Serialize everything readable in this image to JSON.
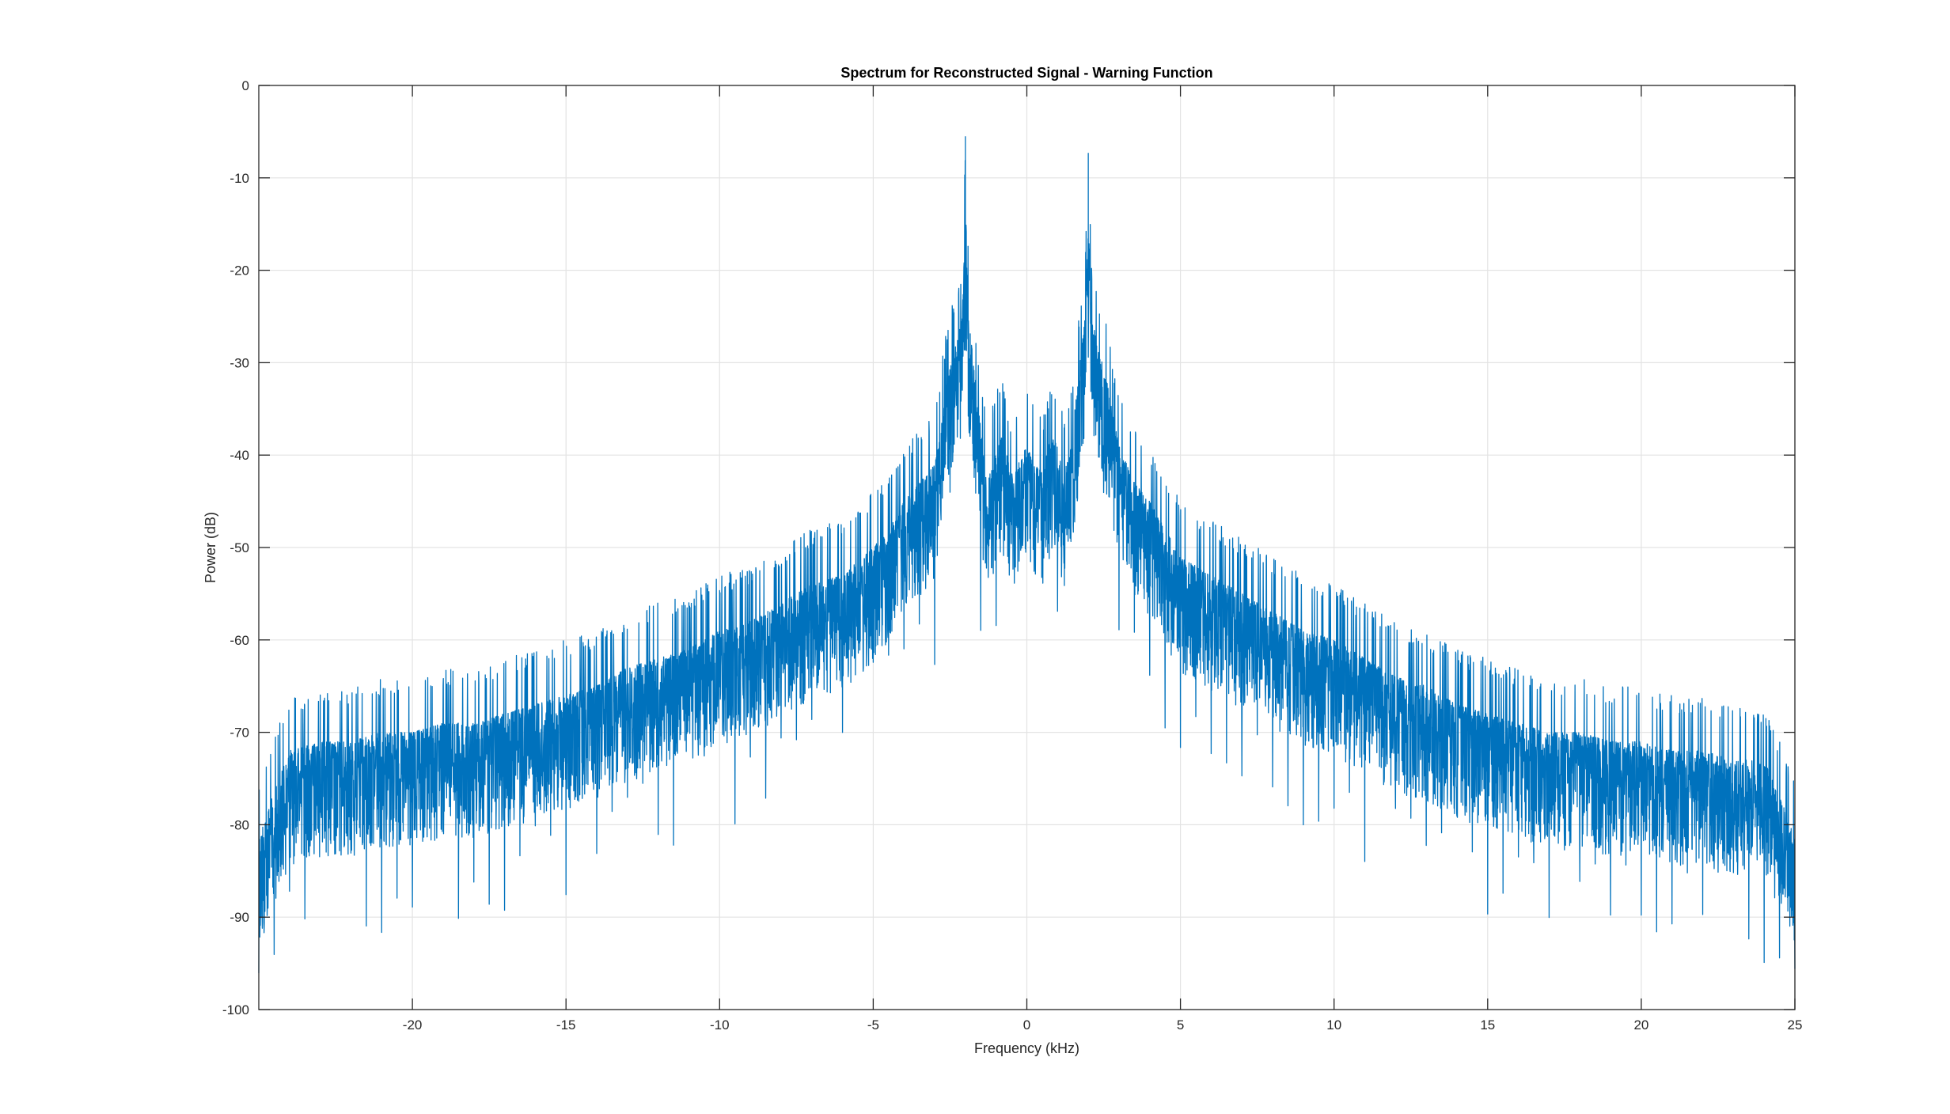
{
  "chart_data": {
    "type": "line",
    "title": "Spectrum for Reconstructed Signal - Warning Function",
    "xlabel": "Frequency (kHz)",
    "ylabel": "Power (dB)",
    "xlim": [
      -25,
      25
    ],
    "ylim": [
      -100,
      0
    ],
    "xticks": [
      -20,
      -15,
      -10,
      -5,
      0,
      5,
      10,
      15,
      20,
      25
    ],
    "yticks": [
      0,
      -10,
      -20,
      -30,
      -40,
      -50,
      -60,
      -70,
      -80,
      -90,
      -100
    ],
    "grid": true,
    "legend": "none",
    "line_color": "#0072BD",
    "series": [
      {
        "x": [
          -25,
          -24,
          -23,
          -22,
          -21,
          -20,
          -19,
          -18,
          -17,
          -16,
          -15,
          -14,
          -13,
          -12,
          -11,
          -10,
          -9,
          -8,
          -7,
          -6,
          -5,
          -4.5,
          -4,
          -3.5,
          -3,
          -2.6,
          -2.3,
          -2.1,
          -2,
          -1.9,
          -1.7,
          -1.4,
          -1.2,
          -1,
          -0.8,
          -0.5,
          -0.3,
          0,
          0.3,
          0.5,
          0.8,
          1,
          1.2,
          1.4,
          1.7,
          1.9,
          2,
          2.1,
          2.3,
          2.6,
          3,
          3.5,
          4,
          4.5,
          5,
          6,
          7,
          8,
          9,
          10,
          11,
          12,
          13,
          14,
          15,
          16,
          17,
          18,
          19,
          20,
          21,
          22,
          23,
          24,
          25
        ],
        "y": [
          -75,
          -66,
          -65,
          -65,
          -64,
          -64,
          -63,
          -63,
          -62,
          -61,
          -60,
          -59,
          -57,
          -56,
          -55,
          -53,
          -52,
          -50,
          -48,
          -47,
          -44,
          -42,
          -39,
          -37,
          -35,
          -26,
          -22,
          -19,
          -5.5,
          -19,
          -25,
          -34,
          -36,
          -33,
          -32,
          -36,
          -35,
          -33,
          -35,
          -36,
          -32,
          -33,
          -36,
          -34,
          -25,
          -19,
          -7.3,
          -19,
          -22,
          -26,
          -33,
          -37,
          -39,
          -42,
          -45,
          -47,
          -49,
          -51,
          -53,
          -54,
          -56,
          -58,
          -59,
          -61,
          -62,
          -63,
          -64,
          -64,
          -65,
          -65,
          -66,
          -66,
          -67,
          -67,
          -75
        ]
      }
    ]
  }
}
